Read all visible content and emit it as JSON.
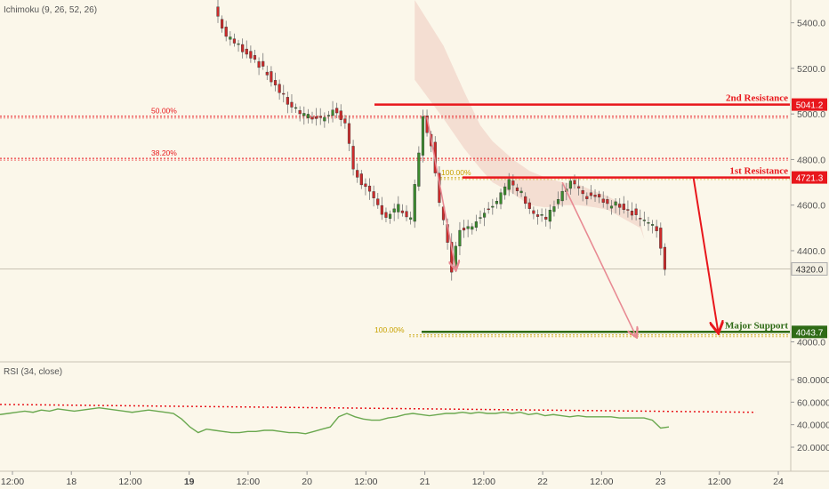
{
  "chart_data": {
    "type": "candlestick",
    "indicators": {
      "ichimoku_label": "Ichimoku (9, 26, 52, 26)",
      "rsi_label": "RSI (34, close)"
    },
    "price_axis": {
      "ticks": [
        5400,
        5200,
        5000,
        4800,
        4600,
        4400,
        4000
      ],
      "tick_labels": [
        "5400.0",
        "5200.0",
        "5000.0",
        "4800.0",
        "4600.0",
        "4400.0",
        "4000.0"
      ],
      "range": [
        3920,
        5500
      ]
    },
    "rsi_axis": {
      "ticks": [
        80,
        60,
        40,
        20
      ],
      "tick_labels": [
        "80.0000",
        "60.0000",
        "40.0000",
        "20.0000"
      ],
      "range": [
        5,
        95
      ]
    },
    "time_axis": {
      "labels": [
        "12:00",
        "18",
        "12:00",
        "19",
        "12:00",
        "20",
        "12:00",
        "21",
        "12:00",
        "22",
        "12:00",
        "23",
        "12:00",
        "24"
      ],
      "bold": [
        false,
        false,
        false,
        true,
        false,
        false,
        false,
        false,
        false,
        false,
        false,
        false,
        false,
        false
      ]
    },
    "last_price": 4320.0,
    "last_price_label": "4320.0",
    "levels": [
      {
        "name": "2nd Resistance",
        "value": 5041.2,
        "value_label": "5041.2",
        "color": "#e8171c"
      },
      {
        "name": "1st Resistance",
        "value": 4721.3,
        "value_label": "4721.3",
        "color": "#e8171c"
      },
      {
        "name": "Major Support",
        "value": 4043.7,
        "value_label": "4043.7",
        "color": "#2f6b16"
      }
    ],
    "fibonacci": [
      {
        "label": "50.00%",
        "value": 4990,
        "color": "#e8171c"
      },
      {
        "label": "38.20%",
        "value": 4805,
        "color": "#e8171c"
      },
      {
        "label": "100.00%",
        "value": 4720,
        "color": "#c8a200"
      },
      {
        "label": "100.00%",
        "value": 4030,
        "color": "#c8a200"
      }
    ],
    "rsi_resistance": {
      "start": 58,
      "end": 51
    },
    "price_path": [
      [
        0,
        5470
      ],
      [
        3,
        5340
      ],
      [
        6,
        5300
      ],
      [
        10,
        5240
      ],
      [
        14,
        5150
      ],
      [
        18,
        5050
      ],
      [
        22,
        4990
      ],
      [
        26,
        4980
      ],
      [
        29,
        5020
      ],
      [
        32,
        4960
      ],
      [
        34,
        4760
      ],
      [
        36,
        4700
      ],
      [
        39,
        4620
      ],
      [
        42,
        4550
      ],
      [
        45,
        4590
      ],
      [
        48,
        4530
      ],
      [
        51,
        4980
      ],
      [
        53,
        4870
      ],
      [
        55,
        4600
      ],
      [
        57,
        4450
      ],
      [
        58,
        4320
      ],
      [
        60,
        4500
      ],
      [
        63,
        4510
      ],
      [
        66,
        4580
      ],
      [
        69,
        4620
      ],
      [
        72,
        4700
      ],
      [
        75,
        4650
      ],
      [
        78,
        4560
      ],
      [
        81,
        4540
      ],
      [
        84,
        4620
      ],
      [
        87,
        4700
      ],
      [
        90,
        4640
      ],
      [
        93,
        4640
      ],
      [
        96,
        4600
      ],
      [
        99,
        4600
      ],
      [
        102,
        4570
      ],
      [
        105,
        4530
      ],
      [
        108,
        4490
      ],
      [
        109,
        4420
      ],
      [
        110,
        4320
      ]
    ],
    "rsi_values": [
      49,
      50,
      51,
      52,
      51,
      53,
      52,
      54,
      53,
      52,
      53,
      54,
      55,
      54,
      53,
      52,
      51,
      52,
      53,
      52,
      51,
      50,
      45,
      38,
      33,
      36,
      35,
      34,
      33,
      33,
      34,
      34,
      35,
      35,
      34,
      33,
      33,
      32,
      34,
      36,
      38,
      47,
      50,
      47,
      45,
      44,
      44,
      46,
      47,
      49,
      50,
      49,
      48,
      49,
      50,
      50,
      51,
      50,
      51,
      50,
      50,
      51,
      50,
      51,
      49,
      50,
      48,
      49,
      48,
      47,
      48,
      47,
      47,
      47,
      47,
      46,
      46,
      46,
      46,
      44,
      37,
      38
    ],
    "cloud": {
      "upper": [
        [
          48,
          5500
        ],
        [
          55,
          5300
        ],
        [
          60,
          5100
        ],
        [
          64,
          4950
        ],
        [
          67,
          4880
        ],
        [
          72,
          4800
        ],
        [
          76,
          4750
        ],
        [
          80,
          4720
        ],
        [
          84,
          4700
        ],
        [
          88,
          4690
        ],
        [
          92,
          4660
        ],
        [
          95,
          4640
        ],
        [
          97,
          4620
        ],
        [
          100,
          4580
        ],
        [
          103,
          4530
        ],
        [
          104,
          4450
        ]
      ],
      "lower": [
        [
          104,
          4450
        ],
        [
          103,
          4500
        ],
        [
          100,
          4530
        ],
        [
          97,
          4560
        ],
        [
          95,
          4580
        ],
        [
          92,
          4590
        ],
        [
          88,
          4600
        ],
        [
          84,
          4600
        ],
        [
          80,
          4590
        ],
        [
          76,
          4600
        ],
        [
          72,
          4650
        ],
        [
          67,
          4700
        ],
        [
          64,
          4760
        ],
        [
          60,
          4850
        ],
        [
          55,
          4980
        ],
        [
          48,
          5150
        ]
      ]
    },
    "projections": [
      {
        "from": [
          51,
          4985
        ],
        "to": [
          58,
          4320
        ],
        "color": "#e88a93"
      },
      {
        "from": [
          84,
          4700
        ],
        "to": [
          102,
          4025
        ],
        "color": "#e88a93"
      },
      {
        "from": [
          116,
          4720
        ],
        "to": [
          122,
          4045
        ],
        "color": "#e8171c"
      }
    ]
  }
}
